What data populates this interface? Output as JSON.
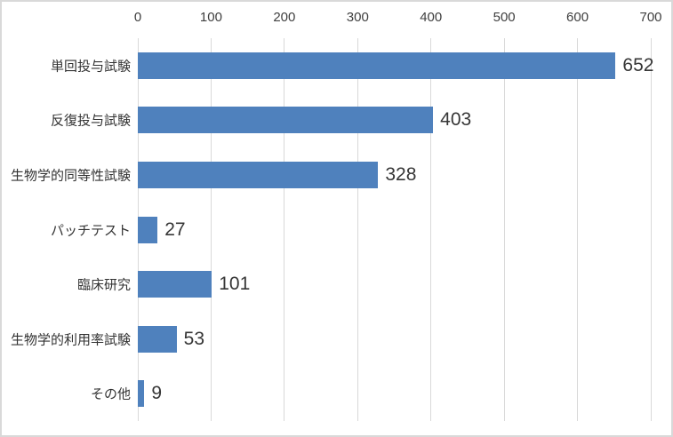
{
  "chart_data": {
    "type": "bar",
    "orientation": "horizontal",
    "title": "",
    "xlabel": "",
    "ylabel": "",
    "categories": [
      "単回投与試験",
      "反復投与試験",
      "生物学的同等性試験",
      "パッチテスト",
      "臨床研究",
      "生物学的利用率試験",
      "その他"
    ],
    "values": [
      652,
      403,
      328,
      27,
      101,
      53,
      9
    ],
    "data_labels": [
      "652",
      "403",
      "328",
      "27",
      "101",
      "53",
      "9"
    ],
    "xlim": [
      0,
      700
    ],
    "xticks": [
      0,
      100,
      200,
      300,
      400,
      500,
      600,
      700
    ],
    "xtick_labels": [
      "0",
      "100",
      "200",
      "300",
      "400",
      "500",
      "600",
      "700"
    ],
    "axis_position": "top",
    "grid": true,
    "legend": false,
    "colors": {
      "bar": "#4f81bd",
      "gridline": "#d9d9d9",
      "tick_label": "#404040",
      "data_label": "#363636",
      "category_label": "#333333",
      "border": "#d9d9d9",
      "background": "#ffffff"
    }
  }
}
